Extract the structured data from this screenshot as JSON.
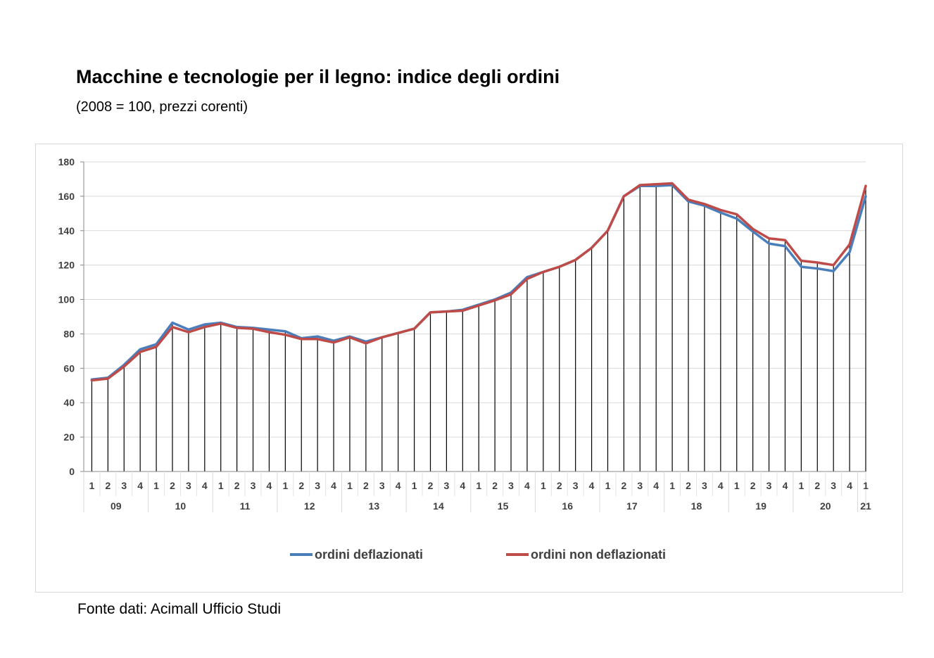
{
  "header": {
    "title": "Macchine e tecnologie per il legno: indice degli ordini",
    "subtitle": "(2008 = 100, prezzi corenti)"
  },
  "footer": {
    "source": "Fonte dati: Acimall Ufficio Studi"
  },
  "chart_data": {
    "type": "line",
    "title": "Macchine e tecnologie per il legno: indice degli ordini",
    "subtitle": "(2008 = 100, prezzi corenti)",
    "xlabel": "",
    "ylabel": "",
    "ylim": [
      0,
      180
    ],
    "yticks": [
      0,
      20,
      40,
      60,
      80,
      100,
      120,
      140,
      160,
      180
    ],
    "grid": true,
    "legend_position": "bottom",
    "x_quarters": [
      "1",
      "2",
      "3",
      "4",
      "1",
      "2",
      "3",
      "4",
      "1",
      "2",
      "3",
      "4",
      "1",
      "2",
      "3",
      "4",
      "1",
      "2",
      "3",
      "4",
      "1",
      "2",
      "3",
      "4",
      "1",
      "2",
      "3",
      "4",
      "1",
      "2",
      "3",
      "4",
      "1",
      "2",
      "3",
      "4",
      "1",
      "2",
      "3",
      "4",
      "1",
      "2",
      "3",
      "4",
      "1",
      "2",
      "3",
      "4",
      "1"
    ],
    "x_years": [
      {
        "label": "09",
        "count": 4
      },
      {
        "label": "10",
        "count": 4
      },
      {
        "label": "11",
        "count": 4
      },
      {
        "label": "12",
        "count": 4
      },
      {
        "label": "13",
        "count": 4
      },
      {
        "label": "14",
        "count": 4
      },
      {
        "label": "15",
        "count": 4
      },
      {
        "label": "16",
        "count": 4
      },
      {
        "label": "17",
        "count": 4
      },
      {
        "label": "18",
        "count": 4
      },
      {
        "label": "19",
        "count": 4
      },
      {
        "label": "20",
        "count": 4
      },
      {
        "label": "21",
        "count": 1
      }
    ],
    "series": [
      {
        "name": "ordini deflazionati",
        "color": "#4a7ebb",
        "values": [
          53.5,
          54.5,
          62,
          71,
          74,
          86.5,
          82.5,
          85.5,
          86.5,
          84,
          83.5,
          82.5,
          81.5,
          77.5,
          78.5,
          76,
          78.5,
          75.5,
          78,
          80.5,
          83,
          92.5,
          93,
          94,
          97,
          100,
          104,
          113,
          116,
          119,
          123,
          130,
          140,
          160,
          166,
          166,
          166.5,
          157,
          154.5,
          150.5,
          147,
          139.5,
          132.5,
          131,
          119,
          118,
          116.5,
          127.5,
          160
        ]
      },
      {
        "name": "ordini non deflazionati",
        "color": "#be4b48",
        "values": [
          53,
          54,
          61,
          69.5,
          72.5,
          84,
          81,
          84,
          86,
          83.5,
          83,
          81,
          79.5,
          77,
          77,
          75,
          78,
          74.5,
          78,
          80.5,
          83,
          92.5,
          93,
          93.5,
          96.5,
          99.5,
          103,
          112,
          116,
          119,
          123,
          130,
          140,
          160,
          166.5,
          167,
          167.5,
          158,
          155.5,
          152,
          149.5,
          141,
          135.5,
          134.5,
          122.5,
          121.5,
          120,
          132,
          166
        ]
      }
    ]
  }
}
